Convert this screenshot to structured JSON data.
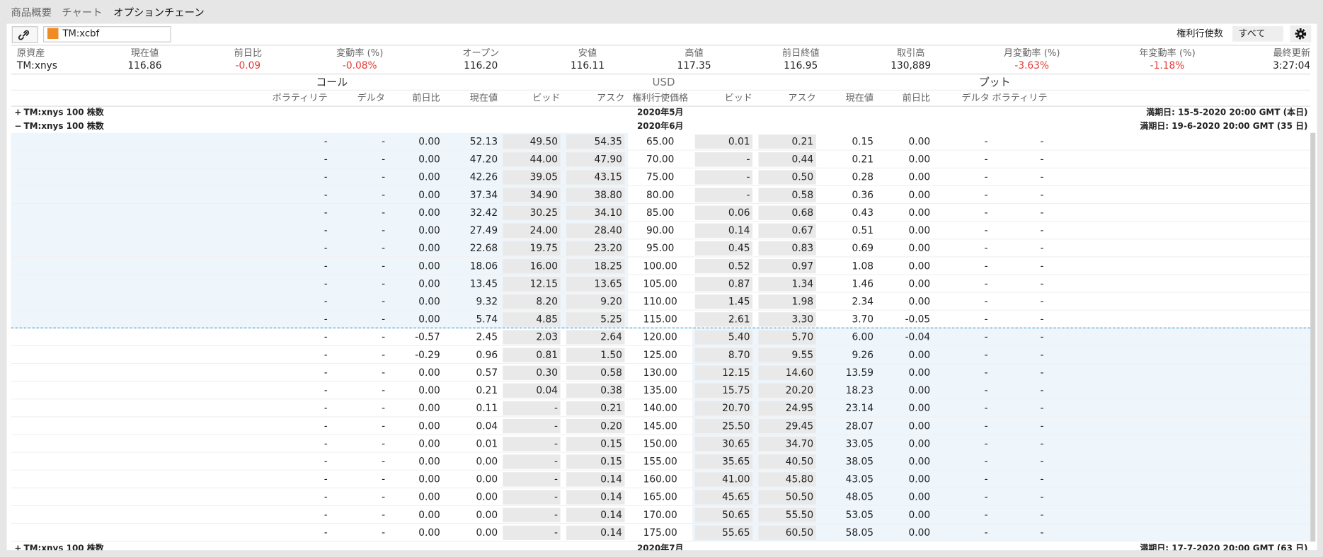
{
  "tabs": [
    "商品概要",
    "チャート",
    "オプションチェーン"
  ],
  "toolbar": {
    "symbol": "TM:xcbf",
    "strikes_label": "権利行使数",
    "strikes_value": "すべて"
  },
  "quote": {
    "labels": [
      "原資産",
      "現在値",
      "前日比",
      "変動率 (%)",
      "オープン",
      "安値",
      "高値",
      "前日終値",
      "取引高",
      "月変動率 (%)",
      "年変動率 (%)",
      "最終更新"
    ],
    "values": [
      "TM:xnys",
      "116.86",
      "-0.09",
      "-0.08%",
      "116.20",
      "116.11",
      "117.35",
      "116.95",
      "130,889",
      "-3.63%",
      "-1.18%",
      "3:27:04"
    ]
  },
  "sections": [
    "コール",
    "USD",
    "プット"
  ],
  "columns": [
    "ボラティリテ",
    "デルタ",
    "前日比",
    "現在値",
    "ビッド",
    "アスク",
    "権利行使価格",
    "ビッド",
    "アスク",
    "現在値",
    "前日比",
    "デルタ",
    "ボラティリテ"
  ],
  "expiries": [
    {
      "toggle": "+",
      "name": "TM:xnys 100 株数",
      "month": "2020年5月",
      "expiry": "満期日: 15-5-2020 20:00 GMT (本日)"
    },
    {
      "toggle": "−",
      "name": "TM:xnys 100 株数",
      "month": "2020年6月",
      "expiry": "満期日: 19-6-2020 20:00 GMT (35 日)"
    },
    {
      "toggle": "+",
      "name": "TM:xnys 100 株数",
      "month": "2020年7月",
      "expiry": "満期日: 17-7-2020 20:00 GMT (63 日)"
    }
  ],
  "table": {
    "rows": [
      [
        "-",
        "-",
        "0.00",
        "52.13",
        "49.50",
        "54.35",
        "65.00",
        "0.01",
        "0.21",
        "0.15",
        "0.00",
        "-",
        "-"
      ],
      [
        "-",
        "-",
        "0.00",
        "47.20",
        "44.00",
        "47.90",
        "70.00",
        "-",
        "0.44",
        "0.21",
        "0.00",
        "-",
        "-"
      ],
      [
        "-",
        "-",
        "0.00",
        "42.26",
        "39.05",
        "43.15",
        "75.00",
        "-",
        "0.50",
        "0.28",
        "0.00",
        "-",
        "-"
      ],
      [
        "-",
        "-",
        "0.00",
        "37.34",
        "34.90",
        "38.80",
        "80.00",
        "-",
        "0.58",
        "0.36",
        "0.00",
        "-",
        "-"
      ],
      [
        "-",
        "-",
        "0.00",
        "32.42",
        "30.25",
        "34.10",
        "85.00",
        "0.06",
        "0.68",
        "0.43",
        "0.00",
        "-",
        "-"
      ],
      [
        "-",
        "-",
        "0.00",
        "27.49",
        "24.00",
        "28.40",
        "90.00",
        "0.14",
        "0.67",
        "0.51",
        "0.00",
        "-",
        "-"
      ],
      [
        "-",
        "-",
        "0.00",
        "22.68",
        "19.75",
        "23.20",
        "95.00",
        "0.45",
        "0.83",
        "0.69",
        "0.00",
        "-",
        "-"
      ],
      [
        "-",
        "-",
        "0.00",
        "18.06",
        "16.00",
        "18.25",
        "100.00",
        "0.52",
        "0.97",
        "1.08",
        "0.00",
        "-",
        "-"
      ],
      [
        "-",
        "-",
        "0.00",
        "13.45",
        "12.15",
        "13.65",
        "105.00",
        "0.87",
        "1.34",
        "1.46",
        "0.00",
        "-",
        "-"
      ],
      [
        "-",
        "-",
        "0.00",
        "9.32",
        "8.20",
        "9.20",
        "110.00",
        "1.45",
        "1.98",
        "2.34",
        "0.00",
        "-",
        "-"
      ],
      [
        "-",
        "-",
        "0.00",
        "5.74",
        "4.85",
        "5.25",
        "115.00",
        "2.61",
        "3.30",
        "3.70",
        "-0.05",
        "-",
        "-"
      ],
      [
        "-",
        "-",
        "-0.57",
        "2.45",
        "2.03",
        "2.64",
        "120.00",
        "5.40",
        "5.70",
        "6.00",
        "-0.04",
        "-",
        "-"
      ],
      [
        "-",
        "-",
        "-0.29",
        "0.96",
        "0.81",
        "1.50",
        "125.00",
        "8.70",
        "9.55",
        "9.26",
        "0.00",
        "-",
        "-"
      ],
      [
        "-",
        "-",
        "0.00",
        "0.57",
        "0.30",
        "0.58",
        "130.00",
        "12.15",
        "14.60",
        "13.59",
        "0.00",
        "-",
        "-"
      ],
      [
        "-",
        "-",
        "0.00",
        "0.21",
        "0.04",
        "0.38",
        "135.00",
        "15.75",
        "20.20",
        "18.23",
        "0.00",
        "-",
        "-"
      ],
      [
        "-",
        "-",
        "0.00",
        "0.11",
        "-",
        "0.21",
        "140.00",
        "20.70",
        "24.95",
        "23.14",
        "0.00",
        "-",
        "-"
      ],
      [
        "-",
        "-",
        "0.00",
        "0.04",
        "-",
        "0.20",
        "145.00",
        "25.50",
        "29.45",
        "28.07",
        "0.00",
        "-",
        "-"
      ],
      [
        "-",
        "-",
        "0.00",
        "0.01",
        "-",
        "0.15",
        "150.00",
        "30.65",
        "34.70",
        "33.05",
        "0.00",
        "-",
        "-"
      ],
      [
        "-",
        "-",
        "0.00",
        "0.00",
        "-",
        "0.15",
        "155.00",
        "35.65",
        "40.50",
        "38.05",
        "0.00",
        "-",
        "-"
      ],
      [
        "-",
        "-",
        "0.00",
        "0.00",
        "-",
        "0.14",
        "160.00",
        "41.00",
        "45.80",
        "43.05",
        "0.00",
        "-",
        "-"
      ],
      [
        "-",
        "-",
        "0.00",
        "0.00",
        "-",
        "0.14",
        "165.00",
        "45.65",
        "50.50",
        "48.05",
        "0.00",
        "-",
        "-"
      ],
      [
        "-",
        "-",
        "0.00",
        "0.00",
        "-",
        "0.14",
        "170.00",
        "50.65",
        "55.50",
        "53.05",
        "0.00",
        "-",
        "-"
      ],
      [
        "-",
        "-",
        "0.00",
        "0.00",
        "-",
        "0.14",
        "175.00",
        "55.65",
        "60.50",
        "58.05",
        "0.00",
        "-",
        "-"
      ]
    ]
  }
}
